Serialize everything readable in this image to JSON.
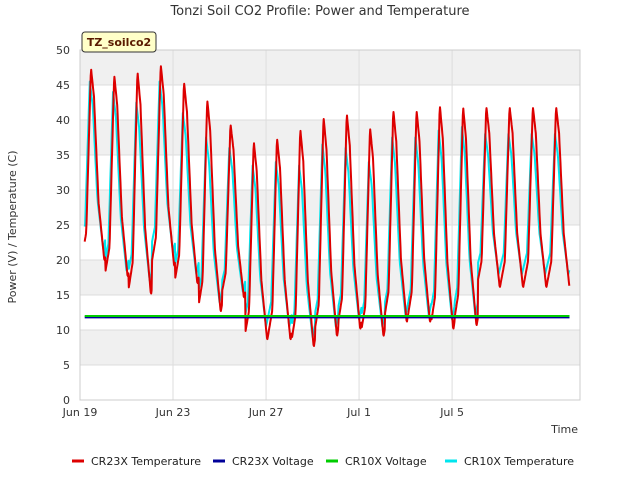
{
  "chart_data": {
    "type": "line",
    "title": "Tonzi Soil CO2 Profile: Power and Temperature",
    "xlabel": "Time",
    "ylabel": "Power (V) / Temperature (C)",
    "badge": "TZ_soilco2",
    "ylim": [
      0,
      50
    ],
    "yticks": [
      0,
      5,
      10,
      15,
      20,
      25,
      30,
      35,
      40,
      45,
      50
    ],
    "xlim_days": [
      0,
      21.5
    ],
    "xticks": [
      {
        "day": 0,
        "label": "Jun 19"
      },
      {
        "day": 4,
        "label": "Jun 23"
      },
      {
        "day": 8,
        "label": "Jun 27"
      },
      {
        "day": 12,
        "label": "Jul 1"
      },
      {
        "day": 16,
        "label": "Jul 5"
      }
    ],
    "grid": true,
    "legend_position": "bottom",
    "series": [
      {
        "name": "CR23X Temperature",
        "color": "#dd0000",
        "daily_min": [
          19.8,
          17.5,
          15.0,
          19.0,
          16.5,
          12.5,
          14.5,
          8.5,
          8.5,
          7.5,
          9.0,
          10.0,
          9.0,
          11.0,
          11.0,
          10.0,
          10.5,
          16.0
        ],
        "daily_max": [
          47.5,
          46.5,
          47.0,
          48.0,
          45.5,
          43.0,
          39.5,
          37.0,
          37.5,
          38.8,
          40.5,
          41.0,
          39.0,
          41.5,
          41.5,
          42.2,
          42.0,
          42.0
        ]
      },
      {
        "name": "CR23X Voltage",
        "color": "#000099",
        "values": [
          11.8,
          11.8
        ]
      },
      {
        "name": "CR10X Voltage",
        "color": "#00cc00",
        "values": [
          12.0,
          12.0
        ]
      },
      {
        "name": "CR10X Temperature",
        "color": "#00e5ee",
        "daily_min": [
          21.5,
          18.5,
          17.0,
          21.0,
          18.0,
          14.0,
          15.5,
          10.5,
          10.5,
          9.0,
          10.5,
          11.5,
          10.5,
          12.0,
          12.0,
          11.5,
          12.0,
          18.0
        ],
        "daily_max": [
          45.5,
          44.0,
          42.5,
          45.5,
          41.0,
          37.5,
          36.0,
          33.5,
          34.0,
          33.5,
          36.5,
          36.0,
          34.0,
          37.5,
          37.5,
          38.5,
          39.0,
          38.0
        ]
      }
    ]
  }
}
